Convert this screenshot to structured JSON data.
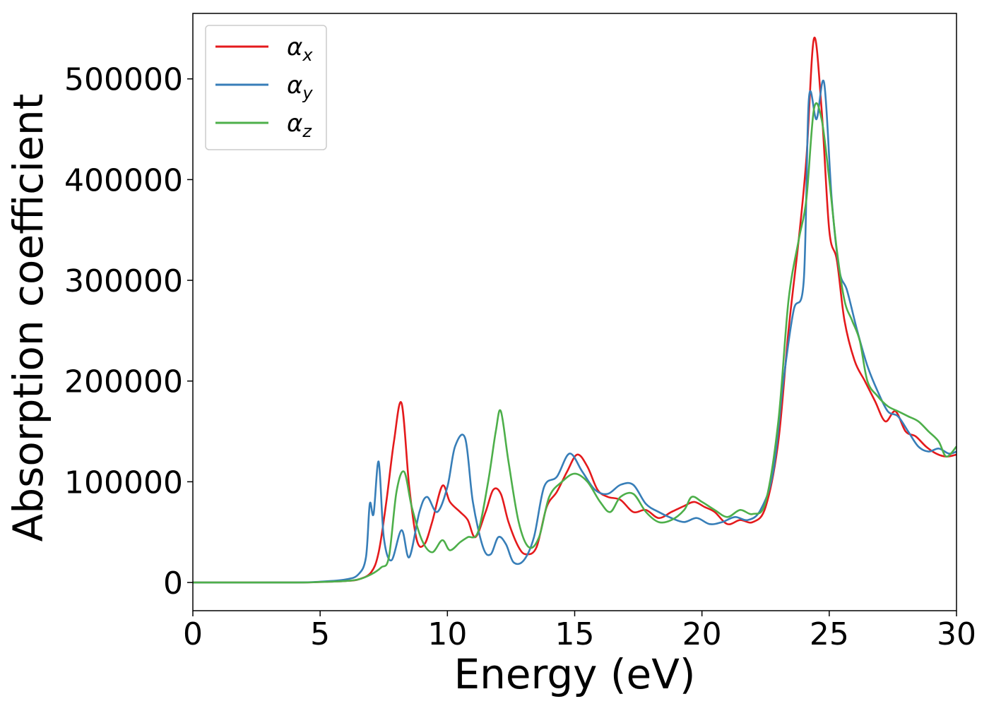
{
  "chart_data": {
    "type": "line",
    "title": "",
    "xlabel": "Energy (eV)",
    "ylabel": "Absorption coefficient",
    "xlim": [
      0,
      30
    ],
    "ylim": [
      -28000,
      565000
    ],
    "xticks": [
      0,
      5,
      10,
      15,
      20,
      25,
      30
    ],
    "yticks": [
      0,
      100000,
      200000,
      300000,
      400000,
      500000
    ],
    "xtick_labels": [
      "0",
      "5",
      "10",
      "15",
      "20",
      "25",
      "30"
    ],
    "ytick_labels": [
      "0",
      "100000",
      "200000",
      "300000",
      "400000",
      "500000"
    ],
    "grid": false,
    "legend_position": "top-left",
    "series": [
      {
        "name": "αx",
        "symbol": "α",
        "subscript": "x",
        "color": "#e41a1c",
        "x": [
          0,
          4,
          5,
          6,
          6.5,
          7,
          7.3,
          7.6,
          7.9,
          8.2,
          8.5,
          8.8,
          9.1,
          9.4,
          9.8,
          10.1,
          10.5,
          10.8,
          11.1,
          11.5,
          11.8,
          12.1,
          12.4,
          12.8,
          13.1,
          13.5,
          13.9,
          14.3,
          14.7,
          15.1,
          15.5,
          15.9,
          16.3,
          16.8,
          17.3,
          17.8,
          18.3,
          18.8,
          19.3,
          19.7,
          20.1,
          20.5,
          21.0,
          21.5,
          22.0,
          22.5,
          23.0,
          23.4,
          23.8,
          24.1,
          24.4,
          24.7,
          25.0,
          25.3,
          25.6,
          26.0,
          26.4,
          26.8,
          27.2,
          27.6,
          28.0,
          28.4,
          28.8,
          29.2,
          29.6,
          30.0
        ],
        "values": [
          0,
          0,
          500,
          1500,
          3000,
          10000,
          30000,
          80000,
          140000,
          178000,
          95000,
          42000,
          38000,
          60000,
          96000,
          80000,
          70000,
          62000,
          45000,
          70000,
          92000,
          88000,
          60000,
          35000,
          28000,
          35000,
          75000,
          90000,
          110000,
          127000,
          115000,
          92000,
          85000,
          82000,
          70000,
          72000,
          64000,
          70000,
          76000,
          80000,
          75000,
          70000,
          58000,
          62000,
          60000,
          75000,
          140000,
          250000,
          340000,
          420000,
          540000,
          470000,
          350000,
          320000,
          260000,
          220000,
          200000,
          180000,
          160000,
          170000,
          150000,
          145000,
          135000,
          128000,
          125000,
          127000
        ]
      },
      {
        "name": "αy",
        "symbol": "α",
        "subscript": "y",
        "color": "#377eb8",
        "x": [
          0,
          4,
          5,
          6,
          6.5,
          6.8,
          6.95,
          7.1,
          7.3,
          7.5,
          7.8,
          8.2,
          8.5,
          8.9,
          9.2,
          9.6,
          10.0,
          10.3,
          10.7,
          11.0,
          11.4,
          11.7,
          12.0,
          12.3,
          12.6,
          13.0,
          13.4,
          13.8,
          14.3,
          14.8,
          15.3,
          15.8,
          16.3,
          16.8,
          17.3,
          17.8,
          18.3,
          18.8,
          19.3,
          19.8,
          20.3,
          20.8,
          21.3,
          21.8,
          22.3,
          22.8,
          23.2,
          23.6,
          24.0,
          24.2,
          24.5,
          24.8,
          25.1,
          25.4,
          25.7,
          26.1,
          26.5,
          26.9,
          27.3,
          27.7,
          28.1,
          28.5,
          28.9,
          29.3,
          29.7,
          30.0
        ],
        "values": [
          0,
          0,
          800,
          3000,
          8000,
          25000,
          78000,
          68000,
          120000,
          45000,
          22000,
          52000,
          25000,
          70000,
          85000,
          70000,
          95000,
          135000,
          143000,
          80000,
          35000,
          28000,
          45000,
          38000,
          20000,
          22000,
          45000,
          95000,
          105000,
          128000,
          110000,
          92000,
          88000,
          97000,
          97000,
          78000,
          70000,
          64000,
          60000,
          64000,
          58000,
          60000,
          65000,
          62000,
          72000,
          110000,
          200000,
          270000,
          300000,
          480000,
          460000,
          496000,
          380000,
          310000,
          290000,
          250000,
          215000,
          190000,
          170000,
          165000,
          150000,
          135000,
          130000,
          133000,
          128000,
          130000
        ]
      },
      {
        "name": "αz",
        "symbol": "α",
        "subscript": "z",
        "color": "#4daf4a",
        "x": [
          0,
          4,
          5,
          6,
          6.5,
          7,
          7.4,
          7.7,
          8.0,
          8.3,
          8.6,
          9.0,
          9.4,
          9.8,
          10.1,
          10.5,
          10.8,
          11.2,
          11.6,
          11.9,
          12.1,
          12.4,
          12.8,
          13.2,
          13.6,
          14.0,
          14.5,
          15.0,
          15.5,
          16.0,
          16.4,
          16.8,
          17.3,
          17.8,
          18.3,
          18.8,
          19.3,
          19.6,
          20.0,
          20.5,
          21.0,
          21.5,
          22.0,
          22.5,
          23.0,
          23.4,
          23.8,
          24.1,
          24.4,
          24.7,
          25.0,
          25.3,
          25.6,
          25.9,
          26.2,
          26.5,
          26.9,
          27.3,
          27.7,
          28.1,
          28.5,
          28.9,
          29.3,
          29.6,
          30.0
        ],
        "values": [
          0,
          0,
          500,
          1500,
          3000,
          8000,
          15000,
          25000,
          90000,
          110000,
          75000,
          42000,
          30000,
          42000,
          32000,
          40000,
          45000,
          50000,
          100000,
          150000,
          170000,
          120000,
          60000,
          35000,
          45000,
          85000,
          100000,
          108000,
          100000,
          80000,
          70000,
          85000,
          88000,
          70000,
          60000,
          62000,
          72000,
          85000,
          80000,
          72000,
          65000,
          72000,
          68000,
          80000,
          160000,
          280000,
          340000,
          380000,
          470000,
          460000,
          400000,
          330000,
          280000,
          260000,
          240000,
          200000,
          185000,
          175000,
          170000,
          165000,
          160000,
          150000,
          140000,
          125000,
          135000
        ]
      }
    ]
  }
}
